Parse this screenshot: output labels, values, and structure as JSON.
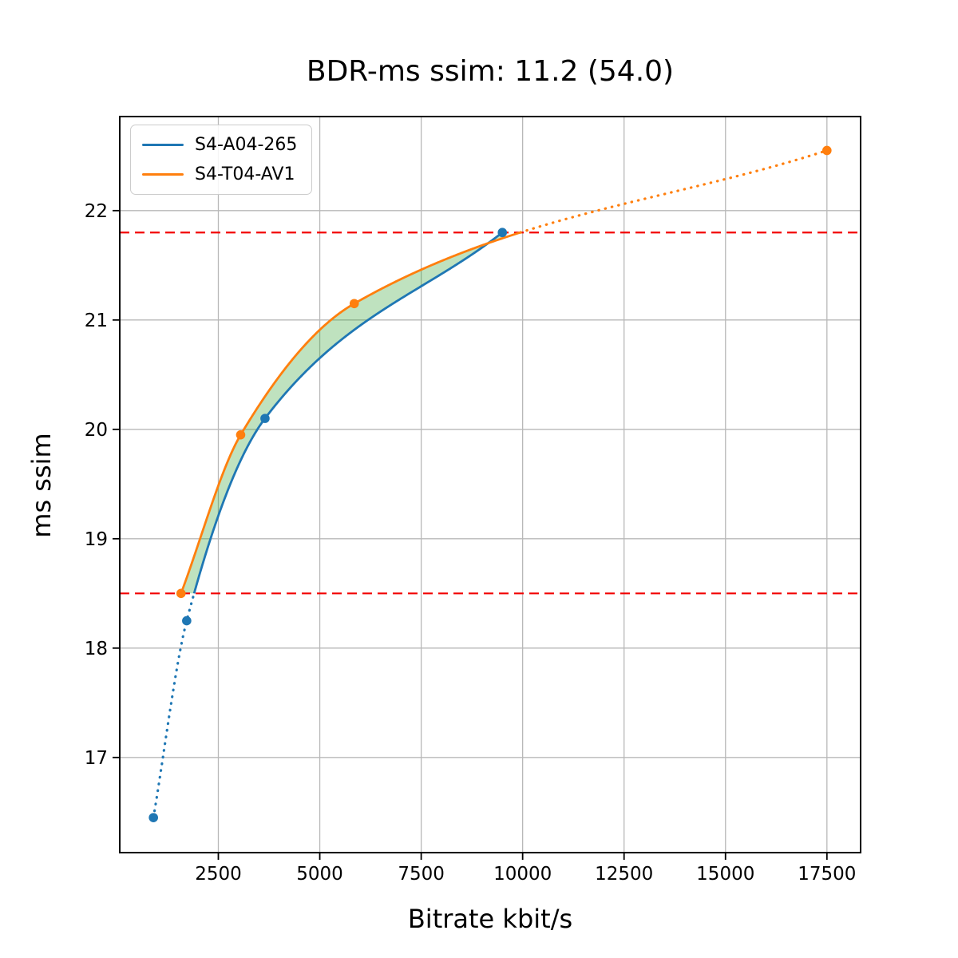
{
  "chart_data": {
    "type": "line",
    "title": "BDR-ms ssim: 11.2 (54.0)",
    "xlabel": "Bitrate kbit/s",
    "ylabel": "ms ssim",
    "xlim": [
      70,
      18330
    ],
    "ylim": [
      16.13,
      22.86
    ],
    "x_ticks": [
      2500,
      5000,
      7500,
      10000,
      12500,
      15000,
      17500
    ],
    "y_ticks": [
      17,
      18,
      19,
      20,
      21,
      22
    ],
    "grid": true,
    "grid_color": "#b8b8b8",
    "legend_position": "upper-left",
    "series": [
      {
        "name": "S4-A04-265",
        "color": "#1f77b4",
        "marker": "circle",
        "interpolation": "pchip",
        "points": [
          [
            900,
            16.45
          ],
          [
            1720,
            18.25
          ],
          [
            3650,
            20.1
          ],
          [
            9500,
            21.8
          ]
        ]
      },
      {
        "name": "S4-T04-AV1",
        "color": "#ff7f0e",
        "marker": "circle",
        "interpolation": "pchip",
        "points": [
          [
            1580,
            18.5
          ],
          [
            3050,
            19.95
          ],
          [
            5850,
            21.15
          ],
          [
            17500,
            22.55
          ]
        ]
      }
    ],
    "reference_lines": [
      {
        "y": 21.8,
        "color": "#f20000",
        "style": "dashed"
      },
      {
        "y": 18.5,
        "color": "#f20000",
        "style": "dashed"
      }
    ],
    "shaded_band": {
      "color": "#2ca02c",
      "alpha": 0.3,
      "between_curves": true,
      "y_range": [
        18.5,
        21.8
      ]
    },
    "out_of_range_linestyle": "dotted"
  }
}
